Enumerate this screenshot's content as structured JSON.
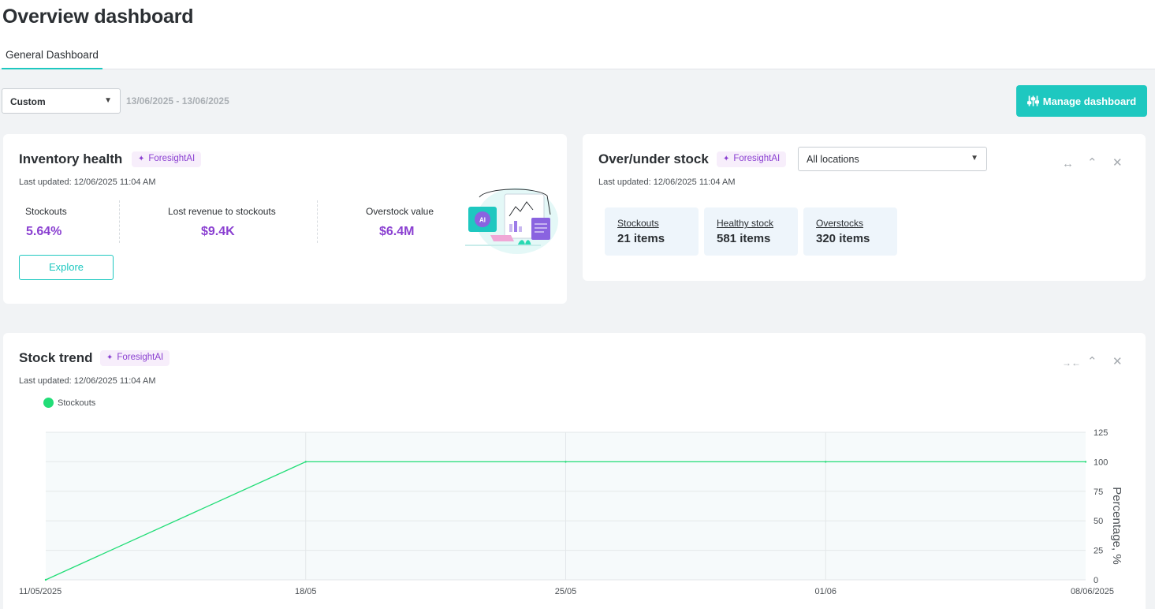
{
  "header": {
    "title": "Overview dashboard",
    "tabs": [
      {
        "label": "General Dashboard",
        "active": true
      }
    ]
  },
  "filters": {
    "range_select": "Custom",
    "date_range": "13/06/2025 - 13/06/2025",
    "manage_label": "Manage dashboard"
  },
  "inventory_health": {
    "title": "Inventory health",
    "badge": "ForesightAI",
    "updated": "Last updated: 12/06/2025 11:04 AM",
    "metrics": [
      {
        "label": "Stockouts",
        "value": "5.64%"
      },
      {
        "label": "Lost revenue to stockouts",
        "value": "$9.4K"
      },
      {
        "label": "Overstock value",
        "value": "$6.4M"
      }
    ],
    "explore_label": "Explore",
    "illustration_badge": "AI"
  },
  "over_under": {
    "title": "Over/under stock",
    "badge": "ForesightAI",
    "updated": "Last updated: 12/06/2025 11:04 AM",
    "location_select": "All locations",
    "stats": [
      {
        "label": "Stockouts",
        "value": "21 items"
      },
      {
        "label": "Healthy stock",
        "value": "581 items"
      },
      {
        "label": "Overstocks",
        "value": "320 items"
      }
    ]
  },
  "stock_trend": {
    "title": "Stock trend",
    "badge": "ForesightAI",
    "updated": "Last updated: 12/06/2025 11:04 AM"
  },
  "colors": {
    "accent": "#1ec8c0",
    "purple": "#8a3fd1",
    "series": "#22dd77"
  },
  "icons": [
    "chevron-down-icon",
    "sliders-icon",
    "sparkle-icon",
    "expand-icon",
    "collapse-icon",
    "chevron-up-icon",
    "close-icon"
  ],
  "chart_data": {
    "type": "line",
    "x": [
      "11/05/2025",
      "18/05",
      "25/05",
      "01/06",
      "08/06/2025"
    ],
    "series": [
      {
        "name": "Stockouts",
        "values": [
          0,
          100,
          100,
          100,
          100
        ],
        "color": "#22dd77"
      }
    ],
    "xlabel": "",
    "ylabel": "Percentage, %",
    "ylim": [
      0,
      125
    ],
    "yticks": [
      0,
      25,
      50,
      75,
      100,
      125
    ],
    "y_axis_side": "right",
    "legend": "top-left",
    "grid": true
  }
}
